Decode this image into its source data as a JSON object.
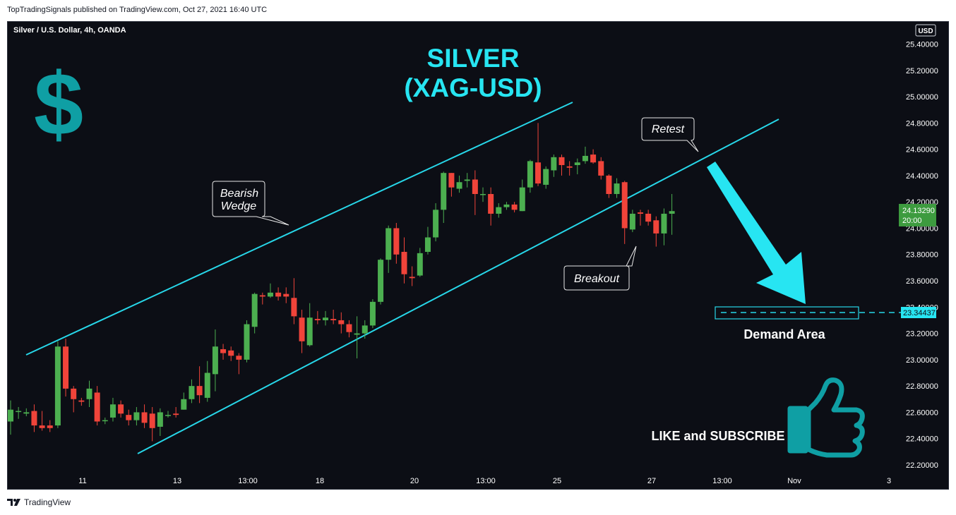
{
  "header": {
    "publish_line": "TopTradingSignals published on TradingView.com, Oct 27, 2021 16:40 UTC",
    "symbol": "Silver / U.S. Dollar, 4h, OANDA",
    "currency_badge": "USD"
  },
  "footer": {
    "brand": "TradingView"
  },
  "colors": {
    "background": "#0c0e15",
    "up": "#4caf50",
    "down": "#f0443a",
    "trendline": "#27d7e9",
    "title": "#27e5f2",
    "dollar": "#0f9fa4",
    "price_tag": "#3d9b3f"
  },
  "annotations": {
    "title_line1": "SILVER",
    "title_line2": "(XAG-USD)",
    "dollar_sign": "$",
    "bearish_line1": "Bearish",
    "bearish_line2": "Wedge",
    "retest": "Retest",
    "breakout": "Breakout",
    "demand": "Demand Area",
    "like": "LIKE and SUBSCRIBE",
    "icon": "thumbs-up-icon"
  },
  "chart_data": {
    "type": "candlestick",
    "title": "Silver / U.S. Dollar, 4h, OANDA",
    "ylim": [
      22.1,
      25.55
    ],
    "y_ticks": [
      "25.40000",
      "25.20000",
      "25.00000",
      "24.80000",
      "24.60000",
      "24.40000",
      "24.20000",
      "24.00000",
      "23.80000",
      "23.60000",
      "23.40000",
      "23.20000",
      "23.00000",
      "22.80000",
      "22.60000",
      "22.40000",
      "22.20000"
    ],
    "x_ticks": [
      "11",
      "13",
      "13:00",
      "18",
      "20",
      "13:00",
      "25",
      "27",
      "13:00",
      "Nov",
      "3"
    ],
    "last_price": "24.13290",
    "countdown": "20:00",
    "demand_level": "23.34437",
    "candles": [
      [
        22.53,
        22.62,
        22.69,
        22.43
      ],
      [
        22.61,
        22.61,
        22.64,
        22.55
      ],
      [
        22.59,
        22.6,
        22.63,
        22.57
      ],
      [
        22.61,
        22.5,
        22.66,
        22.45
      ],
      [
        22.5,
        22.48,
        22.61,
        22.46
      ],
      [
        22.5,
        22.48,
        22.54,
        22.45
      ],
      [
        22.5,
        23.1,
        23.14,
        22.48
      ],
      [
        23.1,
        22.78,
        23.16,
        22.72
      ],
      [
        22.78,
        22.7,
        22.8,
        22.6
      ],
      [
        22.69,
        22.68,
        22.71,
        22.65
      ],
      [
        22.7,
        22.78,
        22.84,
        22.64
      ],
      [
        22.75,
        22.53,
        22.8,
        22.5
      ],
      [
        22.54,
        22.54,
        22.56,
        22.51
      ],
      [
        22.56,
        22.66,
        22.71,
        22.53
      ],
      [
        22.66,
        22.59,
        22.69,
        22.56
      ],
      [
        22.58,
        22.54,
        22.62,
        22.5
      ],
      [
        22.54,
        22.6,
        22.64,
        22.5
      ],
      [
        22.6,
        22.52,
        22.66,
        22.48
      ],
      [
        22.59,
        22.48,
        22.64,
        22.38
      ],
      [
        22.49,
        22.6,
        22.63,
        22.42
      ],
      [
        22.58,
        22.58,
        22.61,
        22.56
      ],
      [
        22.59,
        22.58,
        22.64,
        22.56
      ],
      [
        22.62,
        22.7,
        22.75,
        22.62
      ],
      [
        22.7,
        22.8,
        22.85,
        22.67
      ],
      [
        22.8,
        22.73,
        22.95,
        22.67
      ],
      [
        22.71,
        22.9,
        22.99,
        22.68
      ],
      [
        22.89,
        23.1,
        23.23,
        22.76
      ],
      [
        23.08,
        23.05,
        23.12,
        23.0
      ],
      [
        23.07,
        23.03,
        23.1,
        22.99
      ],
      [
        23.03,
        23.0,
        23.05,
        22.89
      ],
      [
        23.0,
        23.27,
        23.3,
        22.98
      ],
      [
        23.25,
        23.5,
        23.51,
        23.2
      ],
      [
        23.49,
        23.48,
        23.51,
        23.42
      ],
      [
        23.48,
        23.51,
        23.58,
        23.47
      ],
      [
        23.51,
        23.48,
        23.55,
        23.45
      ],
      [
        23.5,
        23.48,
        23.55,
        23.43
      ],
      [
        23.47,
        23.33,
        23.62,
        23.27
      ],
      [
        23.32,
        23.14,
        23.38,
        23.05
      ],
      [
        23.11,
        23.32,
        23.43,
        23.1
      ],
      [
        23.31,
        23.3,
        23.37,
        23.27
      ],
      [
        23.3,
        23.32,
        23.37,
        23.26
      ],
      [
        23.31,
        23.3,
        23.38,
        23.27
      ],
      [
        23.3,
        23.27,
        23.36,
        23.2
      ],
      [
        23.27,
        23.21,
        23.3,
        23.17
      ],
      [
        23.19,
        23.2,
        23.33,
        23.01
      ],
      [
        23.2,
        23.26,
        23.3,
        23.16
      ],
      [
        23.26,
        23.44,
        23.46,
        23.24
      ],
      [
        23.44,
        23.76,
        23.77,
        23.42
      ],
      [
        23.76,
        24.0,
        24.02,
        23.66
      ],
      [
        24.0,
        23.8,
        24.04,
        23.73
      ],
      [
        23.82,
        23.65,
        23.93,
        23.58
      ],
      [
        23.63,
        23.62,
        23.71,
        23.56
      ],
      [
        23.64,
        23.81,
        23.85,
        23.63
      ],
      [
        23.82,
        23.93,
        24.01,
        23.8
      ],
      [
        23.93,
        24.14,
        24.19,
        23.9
      ],
      [
        24.14,
        24.42,
        24.43,
        24.04
      ],
      [
        24.42,
        24.31,
        24.42,
        24.24
      ],
      [
        24.3,
        24.35,
        24.4,
        24.27
      ],
      [
        24.36,
        24.37,
        24.42,
        24.31
      ],
      [
        24.37,
        24.26,
        24.44,
        24.1
      ],
      [
        24.26,
        24.26,
        24.31,
        24.2
      ],
      [
        24.26,
        24.11,
        24.31,
        24.02
      ],
      [
        24.11,
        24.16,
        24.19,
        24.08
      ],
      [
        24.16,
        24.18,
        24.2,
        24.14
      ],
      [
        24.18,
        24.14,
        24.2,
        24.12
      ],
      [
        24.13,
        24.31,
        24.37,
        24.13
      ],
      [
        24.31,
        24.51,
        24.52,
        24.27
      ],
      [
        24.5,
        24.34,
        24.8,
        24.32
      ],
      [
        24.33,
        24.45,
        24.47,
        24.3
      ],
      [
        24.44,
        24.54,
        24.56,
        24.39
      ],
      [
        24.54,
        24.48,
        24.56,
        24.4
      ],
      [
        24.47,
        24.46,
        24.51,
        24.4
      ],
      [
        24.48,
        24.5,
        24.53,
        24.41
      ],
      [
        24.51,
        24.55,
        24.62,
        24.49
      ],
      [
        24.56,
        24.5,
        24.6,
        24.49
      ],
      [
        24.51,
        24.4,
        24.54,
        24.37
      ],
      [
        24.4,
        24.26,
        24.41,
        24.23
      ],
      [
        24.26,
        24.34,
        24.38,
        24.23
      ],
      [
        24.35,
        24.0,
        24.36,
        23.88
      ],
      [
        23.99,
        24.11,
        24.14,
        23.97
      ],
      [
        24.12,
        24.11,
        24.14,
        24.02
      ],
      [
        24.11,
        24.05,
        24.14,
        24.02
      ],
      [
        24.06,
        23.96,
        24.09,
        23.86
      ],
      [
        23.96,
        24.11,
        24.15,
        23.87
      ],
      [
        24.11,
        24.13,
        24.26,
        23.95
      ]
    ]
  }
}
